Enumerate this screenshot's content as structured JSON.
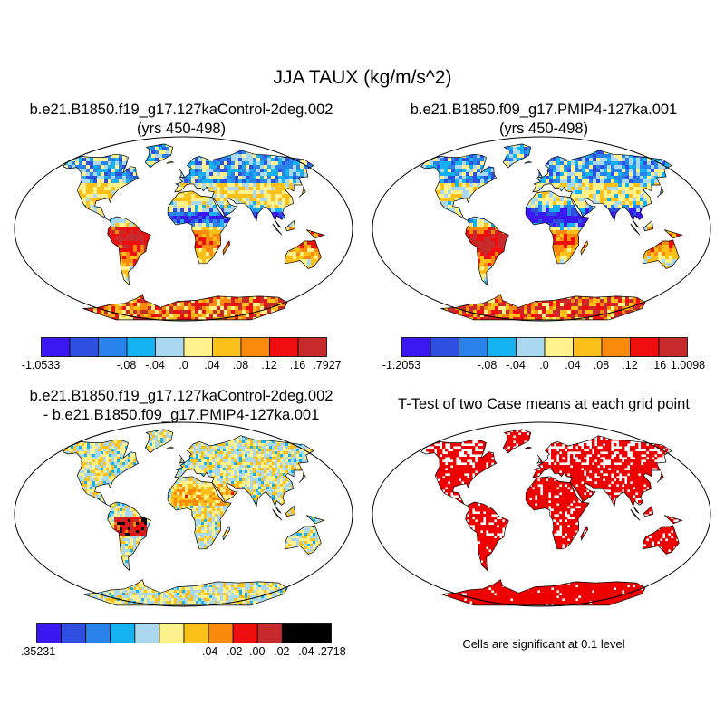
{
  "title": "JJA TAUX (kg/m/s^2)",
  "colors": {
    "palette": [
      "#3b18f2",
      "#2f4fe0",
      "#2a83ea",
      "#14b2f0",
      "#a9d8ef",
      "#fff28c",
      "#fbc11a",
      "#f98a0c",
      "#ee0e0e",
      "#c62a2a"
    ],
    "significant": "#ee0000",
    "land_outline": "#000000",
    "map_border": "#000000"
  },
  "panels": [
    {
      "id": "control",
      "title_line1": "b.e21.B1850.f19_g17.127kaControl-2deg.002",
      "title_line2": "(yrs 450-498)",
      "colorbar_labels": [
        "-1.0533",
        "-.08",
        "-.04",
        ".0",
        ".04",
        ".08",
        ".12",
        ".16",
        ".7927"
      ]
    },
    {
      "id": "pmip4",
      "title_line1": "b.e21.B1850.f09_g17.PMIP4-127ka.001",
      "title_line2": "(yrs 450-498)",
      "colorbar_labels": [
        "-1.2053",
        "-.08",
        "-.04",
        ".0",
        ".04",
        ".08",
        ".12",
        ".16",
        "1.0098"
      ]
    },
    {
      "id": "difference",
      "title_line1": "b.e21.B1850.f19_g17.127kaControl-2deg.002",
      "title_line2": "- b.e21.B1850.f09_g17.PMIP4-127ka.001",
      "colorbar_labels": [
        "-.35231",
        "-.04",
        "-.02",
        ".00",
        ".02",
        ".04",
        ".2718"
      ]
    },
    {
      "id": "ttest",
      "title_line1": "T-Test of two Case means at each grid point",
      "note": "Cells are significant at 0.1 level"
    }
  ]
}
